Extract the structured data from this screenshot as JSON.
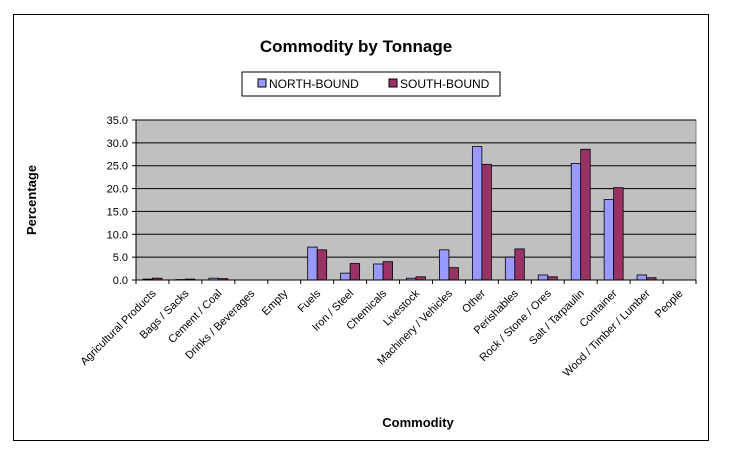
{
  "chart_data": {
    "type": "bar",
    "title": "Commodity by Tonnage",
    "xlabel": "Commodity",
    "ylabel": "Percentage",
    "ylim": [
      0,
      35
    ],
    "yticks": [
      "0.0",
      "5.0",
      "10.0",
      "15.0",
      "20.0",
      "25.0",
      "30.0",
      "35.0"
    ],
    "grid": true,
    "legend_position": "top",
    "categories": [
      "Agricultural Products",
      "Bags / Sacks",
      "Cement / Coal",
      "Drinks / Beverages",
      "Empty",
      "Fuels",
      "Iron / Steel",
      "Chemicals",
      "Livestock",
      "Machinery / Vehicles",
      "Other",
      "Perishables",
      "Rock / Stone / Ores",
      "Salt / Tarpaulin",
      "Container",
      "Wood / Timber / Lumber",
      "People"
    ],
    "series": [
      {
        "name": "NORTH-BOUND",
        "color": "#9999ff",
        "values": [
          0.2,
          0.1,
          0.4,
          0.0,
          0.0,
          7.2,
          1.5,
          3.5,
          0.4,
          6.6,
          29.2,
          5.0,
          1.1,
          25.5,
          17.6,
          1.1,
          0.0
        ]
      },
      {
        "name": "SOUTH-BOUND",
        "color": "#993366",
        "values": [
          0.4,
          0.2,
          0.3,
          0.0,
          0.0,
          6.6,
          3.6,
          4.0,
          0.7,
          2.7,
          25.3,
          6.8,
          0.7,
          28.6,
          20.2,
          0.5,
          0.0
        ]
      }
    ],
    "colors": {
      "plot_background": "#c0c0c0",
      "gridline": "#000000"
    }
  }
}
